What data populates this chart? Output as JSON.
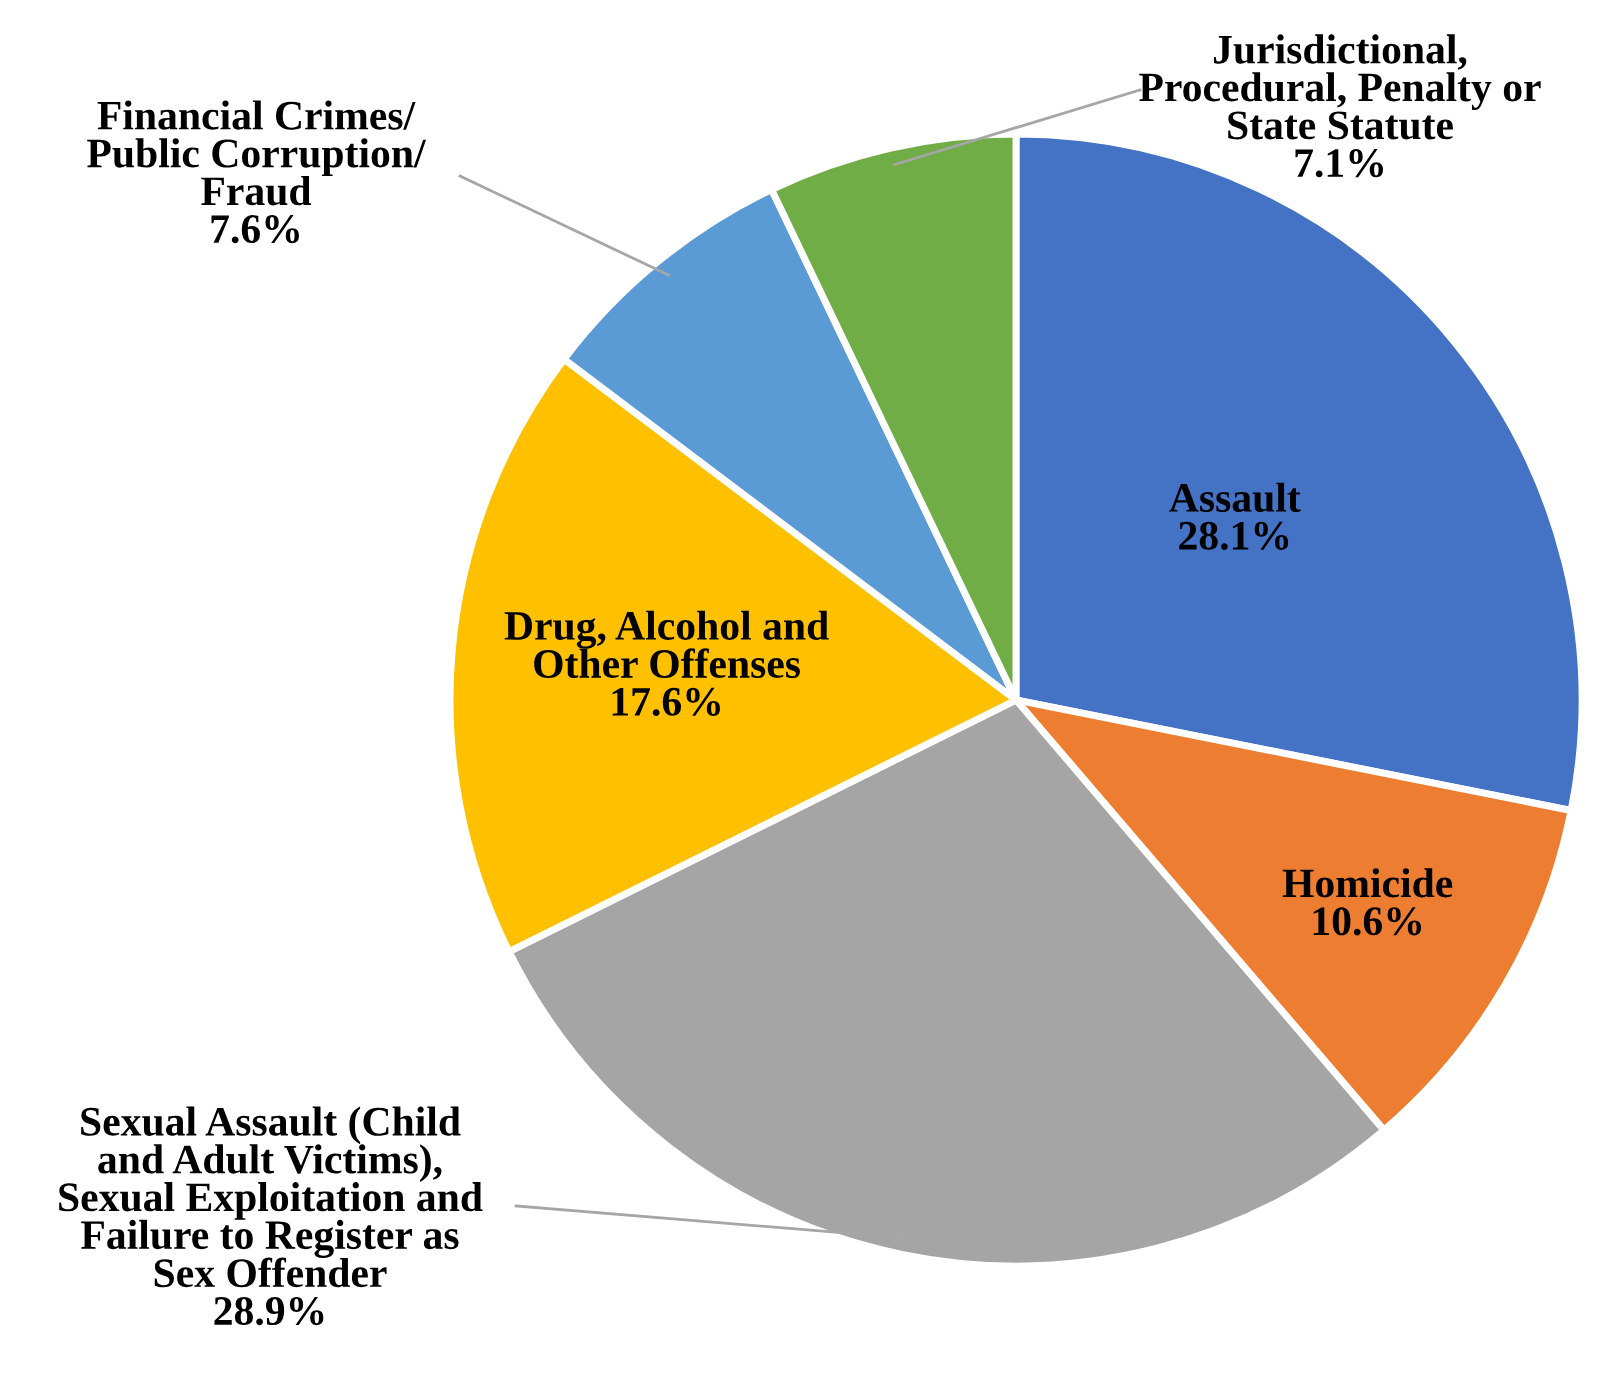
{
  "chart_data": {
    "type": "pie",
    "categories": [
      "Assault",
      "Homicide",
      "Sexual Assault (Child\nand Adult Victims),\nSexual Exploitation and\nFailure to Register as\nSex Offender",
      "Drug, Alcohol and\nOther Offenses",
      "Financial Crimes/\nPublic Corruption/\nFraud",
      "Jurisdictional,\nProcedural, Penalty or\nState Statute"
    ],
    "values": [
      28.1,
      10.6,
      28.9,
      17.6,
      7.6,
      7.1
    ],
    "colors": [
      "#4472c4",
      "#ed7d31",
      "#a5a5a5",
      "#ffc000",
      "#5b9bd5",
      "#70ad47"
    ],
    "value_labels": [
      "28.1%",
      "10.6%",
      "28.9%",
      "17.6%",
      "7.6%",
      "7.1%"
    ]
  }
}
